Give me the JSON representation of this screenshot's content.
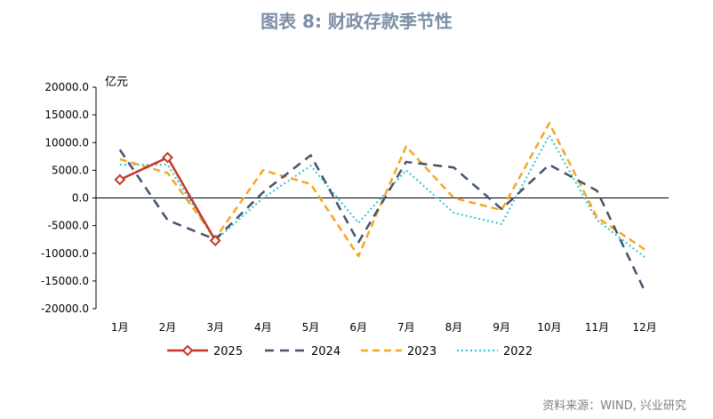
{
  "title": "图表 8: 财政存款季节性",
  "source": "资料来源：WIND, 兴业研究",
  "chart_data": {
    "type": "line",
    "title": "图表 8: 财政存款季节性",
    "ylabel": "亿元",
    "xlabel": "",
    "categories": [
      "1月",
      "2月",
      "3月",
      "4月",
      "5月",
      "6月",
      "7月",
      "8月",
      "9月",
      "10月",
      "11月",
      "12月"
    ],
    "ylim": [
      -20000,
      20000
    ],
    "yticks": [
      20000,
      15000,
      10000,
      5000,
      0,
      -5000,
      -10000,
      -15000,
      -20000
    ],
    "ytick_labels": [
      "20000.0",
      "15000.0",
      "10000.0",
      "5000.0",
      "0.0",
      "-5000.0",
      "-10000.0",
      "-15000.0",
      "-20000.0"
    ],
    "grid": false,
    "legend_position": "bottom",
    "series": [
      {
        "name": "2025",
        "color": "#c0392b",
        "style": "solid-marker",
        "values": [
          3300,
          7300,
          -7700,
          null,
          null,
          null,
          null,
          null,
          null,
          null,
          null,
          null
        ]
      },
      {
        "name": "2024",
        "color": "#44546a",
        "style": "dash",
        "values": [
          8700,
          -4000,
          -7500,
          1000,
          7700,
          -8000,
          6500,
          5500,
          -2000,
          6000,
          1300,
          -16800
        ]
      },
      {
        "name": "2023",
        "color": "#f5a623",
        "style": "dash",
        "values": [
          7000,
          4500,
          -7300,
          5000,
          2500,
          -10500,
          9300,
          0,
          -2200,
          13500,
          -3500,
          -9300
        ]
      },
      {
        "name": "2022",
        "color": "#2ec4d6",
        "style": "dot",
        "values": [
          6000,
          6000,
          -7700,
          0,
          5800,
          -4500,
          5000,
          -2700,
          -4700,
          11300,
          -4000,
          -10700
        ]
      }
    ]
  }
}
